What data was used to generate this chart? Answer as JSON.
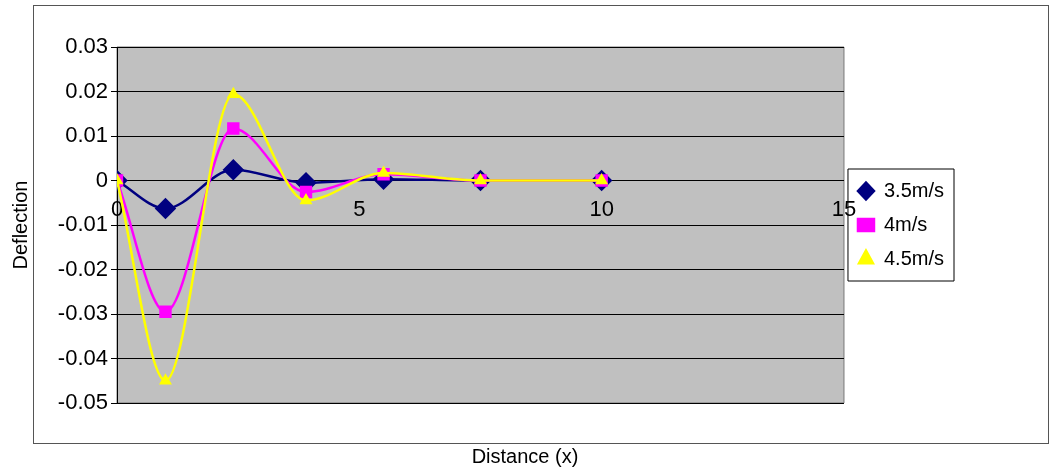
{
  "chart_data": {
    "type": "line",
    "xlabel": "Distance (x)",
    "ylabel": "Deflection",
    "x": [
      0,
      1,
      2.4,
      3.9,
      5.5,
      7.5,
      10
    ],
    "series": [
      {
        "name": "3.5m/s",
        "color": "#000080",
        "marker": "diamond",
        "values": [
          0,
          -0.0063,
          0.0024,
          -0.0005,
          0.0003,
          0,
          0
        ]
      },
      {
        "name": "4m/s",
        "color": "#ff00ff",
        "marker": "square",
        "values": [
          0,
          -0.0295,
          0.0117,
          -0.0026,
          0.0014,
          0,
          0
        ]
      },
      {
        "name": "4.5m/s",
        "color": "#ffff00",
        "marker": "triangle",
        "values": [
          0,
          -0.045,
          0.0194,
          -0.0045,
          0.0017,
          0,
          0
        ]
      }
    ],
    "xlim": [
      0,
      15
    ],
    "xticks": [
      0,
      5,
      10,
      15
    ],
    "ylim": [
      -0.05,
      0.03
    ],
    "yticks": [
      -0.05,
      -0.04,
      -0.03,
      -0.02,
      -0.01,
      0,
      0.01,
      0.02,
      0.03
    ],
    "grid": "y",
    "legend": "right"
  }
}
